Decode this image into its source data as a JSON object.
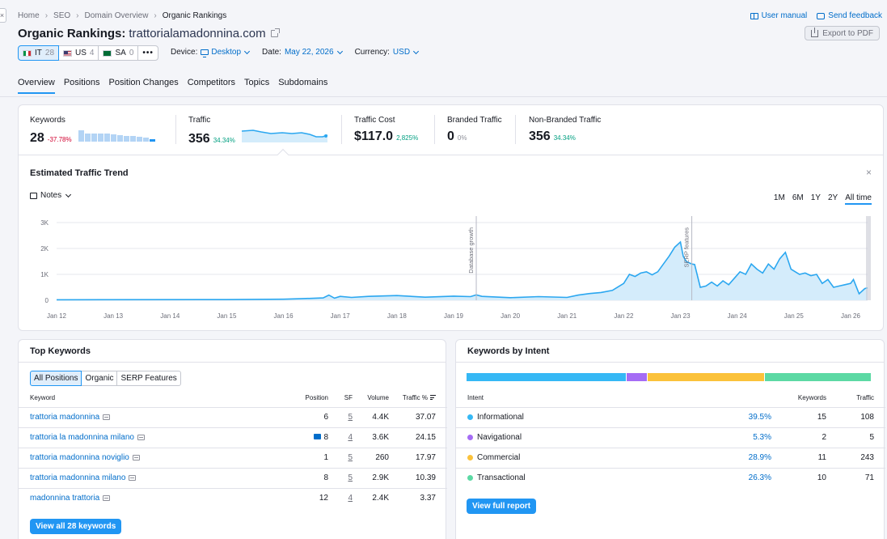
{
  "breadcrumb": [
    "Home",
    "SEO",
    "Domain Overview",
    "Organic Rankings"
  ],
  "header": {
    "title": "Organic Rankings:",
    "domain": "trattorialamadonnina.com",
    "user_manual": "User manual",
    "send_feedback": "Send feedback",
    "export": "Export to PDF"
  },
  "databases": [
    {
      "code": "IT",
      "count": "28",
      "active": true
    },
    {
      "code": "US",
      "count": "4",
      "active": false
    },
    {
      "code": "SA",
      "count": "0",
      "active": false
    }
  ],
  "more": "•••",
  "filters": {
    "device_label": "Device:",
    "device_value": "Desktop",
    "date_label": "Date:",
    "date_value": "May 22, 2026",
    "currency_label": "Currency:",
    "currency_value": "USD"
  },
  "tabs": [
    "Overview",
    "Positions",
    "Position Changes",
    "Competitors",
    "Topics",
    "Subdomains"
  ],
  "metrics": {
    "keywords": {
      "label": "Keywords",
      "value": "28",
      "delta": "-37.78%"
    },
    "traffic": {
      "label": "Traffic",
      "value": "356",
      "delta": "34.34%"
    },
    "traffic_cost": {
      "label": "Traffic Cost",
      "value": "$117.0",
      "delta": "2,825%"
    },
    "branded": {
      "label": "Branded Traffic",
      "value": "0",
      "delta": "0%"
    },
    "non_branded": {
      "label": "Non-Branded Traffic",
      "value": "356",
      "delta": "34.34%"
    }
  },
  "trend": {
    "title": "Estimated Traffic Trend",
    "notes": "Notes",
    "ranges": [
      "1M",
      "6M",
      "1Y",
      "2Y",
      "All time"
    ],
    "active_range": "All time"
  },
  "chart_data": {
    "type": "area",
    "x_ticks": [
      "Jan 12",
      "Jan 13",
      "Jan 14",
      "Jan 15",
      "Jan 16",
      "Jan 17",
      "Jan 18",
      "Jan 19",
      "Jan 20",
      "Jan 21",
      "Jan 22",
      "Jan 23",
      "Jan 24",
      "Jan 25",
      "Jan 26"
    ],
    "y_ticks": [
      "0",
      "1K",
      "2K",
      "3K"
    ],
    "ylim": [
      0,
      3000
    ],
    "annotations": [
      {
        "x": 19.4,
        "label": "Database growth"
      },
      {
        "x": 23.2,
        "label": "SERP features"
      }
    ],
    "x": [
      12.0,
      15.0,
      16.0,
      16.3,
      16.7,
      16.8,
      16.9,
      17.0,
      17.2,
      17.5,
      18.0,
      18.5,
      19.0,
      19.3,
      19.4,
      19.5,
      20.0,
      20.5,
      21.0,
      21.2,
      21.4,
      21.6,
      21.8,
      22.0,
      22.1,
      22.2,
      22.3,
      22.4,
      22.5,
      22.6,
      22.7,
      22.8,
      22.9,
      23.0,
      23.05,
      23.1,
      23.2,
      23.25,
      23.35,
      23.45,
      23.55,
      23.65,
      23.75,
      23.85,
      23.95,
      24.05,
      24.15,
      24.25,
      24.35,
      24.45,
      24.55,
      24.65,
      24.75,
      24.85,
      24.95,
      25.1,
      25.2,
      25.3,
      25.4,
      25.5,
      25.6,
      25.7,
      25.8,
      25.9,
      26.0,
      26.05,
      26.15,
      26.25,
      26.3
    ],
    "values": [
      20,
      25,
      40,
      60,
      90,
      200,
      80,
      150,
      110,
      150,
      180,
      120,
      160,
      140,
      210,
      150,
      100,
      140,
      110,
      200,
      260,
      300,
      380,
      650,
      1000,
      920,
      1050,
      1100,
      980,
      1100,
      1400,
      1700,
      2050,
      2250,
      1700,
      1500,
      1400,
      1380,
      500,
      550,
      700,
      550,
      750,
      600,
      850,
      1100,
      1000,
      1400,
      1200,
      1050,
      1400,
      1200,
      1600,
      1850,
      1200,
      1000,
      1050,
      950,
      1000,
      650,
      800,
      500,
      550,
      600,
      650,
      800,
      250,
      450,
      480
    ]
  },
  "top_keywords": {
    "title": "Top Keywords",
    "filters": [
      "All Positions",
      "Organic",
      "SERP Features"
    ],
    "columns": [
      "Keyword",
      "Position",
      "SF",
      "Volume",
      "Traffic %"
    ],
    "rows": [
      {
        "keyword": "trattoria madonnina",
        "position": "6",
        "sf": "5",
        "volume": "4.4K",
        "traffic": "37.07",
        "image": false
      },
      {
        "keyword": "trattoria la madonnina milano",
        "position": "8",
        "sf": "4",
        "volume": "3.6K",
        "traffic": "24.15",
        "image": true
      },
      {
        "keyword": "trattoria madonnina noviglio",
        "position": "1",
        "sf": "5",
        "volume": "260",
        "traffic": "17.97",
        "image": false
      },
      {
        "keyword": "trattoria madonnina milano",
        "position": "8",
        "sf": "5",
        "volume": "2.9K",
        "traffic": "10.39",
        "image": false
      },
      {
        "keyword": "madonnina trattoria",
        "position": "12",
        "sf": "4",
        "volume": "2.4K",
        "traffic": "3.37",
        "image": false
      }
    ],
    "view_all": "View all 28 keywords"
  },
  "intent": {
    "title": "Keywords by Intent",
    "columns": [
      "Intent",
      "Keywords",
      "Traffic"
    ],
    "rows": [
      {
        "name": "Informational",
        "pct": "39.5%",
        "share": 0.395,
        "keywords": "15",
        "traffic": "108",
        "color": "#35b8f5"
      },
      {
        "name": "Navigational",
        "pct": "5.3%",
        "share": 0.053,
        "keywords": "2",
        "traffic": "5",
        "color": "#a56cf5"
      },
      {
        "name": "Commercial",
        "pct": "28.9%",
        "share": 0.289,
        "keywords": "11",
        "traffic": "243",
        "color": "#fbc23b"
      },
      {
        "name": "Transactional",
        "pct": "26.3%",
        "share": 0.263,
        "keywords": "10",
        "traffic": "71",
        "color": "#5cd9a4"
      }
    ],
    "view_report": "View full report"
  },
  "colors": {
    "accent": "#2196f3",
    "link": "#006dca",
    "chart_line": "#2ba7f0",
    "chart_fill": "#d4ecfb"
  }
}
